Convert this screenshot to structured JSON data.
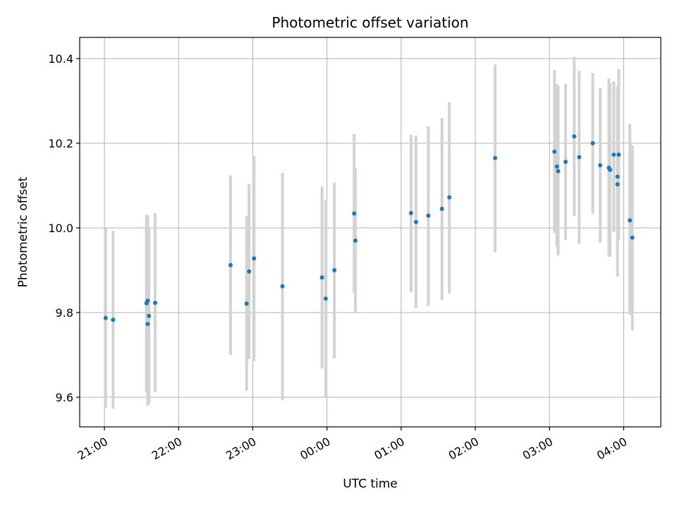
{
  "chart_data": {
    "type": "scatter",
    "title": "Photometric offset variation",
    "xlabel": "UTC time",
    "ylabel": "Photometric offset",
    "xlim": [
      "20:40",
      "04:30"
    ],
    "ylim": [
      9.53,
      10.45
    ],
    "x_ticks": [
      "21:00",
      "22:00",
      "23:00",
      "00:00",
      "01:00",
      "02:00",
      "03:00",
      "04:00"
    ],
    "y_ticks": [
      9.6,
      9.8,
      10.0,
      10.2,
      10.4
    ],
    "y_tick_labels": [
      "9.6",
      "9.8",
      "10.0",
      "10.2",
      "10.4"
    ],
    "grid": true,
    "colors": {
      "point": "#1f77b4",
      "errorbar": "#d3d3d3",
      "grid": "#b0b0b0"
    },
    "points": [
      {
        "t": "21:01",
        "y": 9.787,
        "yerr_low": 9.575,
        "yerr_high": 9.999
      },
      {
        "t": "21:07",
        "y": 9.783,
        "yerr_low": 9.573,
        "yerr_high": 9.993
      },
      {
        "t": "21:34",
        "y": 9.822,
        "yerr_low": 9.613,
        "yerr_high": 10.031
      },
      {
        "t": "21:35",
        "y": 9.828,
        "yerr_low": 9.62,
        "yerr_high": 10.03
      },
      {
        "t": "21:35",
        "y": 9.773,
        "yerr_low": 9.58,
        "yerr_high": 9.985
      },
      {
        "t": "21:36",
        "y": 9.792,
        "yerr_low": 9.585,
        "yerr_high": 9.998
      },
      {
        "t": "21:41",
        "y": 9.823,
        "yerr_low": 9.612,
        "yerr_high": 10.035
      },
      {
        "t": "22:42",
        "y": 9.912,
        "yerr_low": 9.7,
        "yerr_high": 10.124
      },
      {
        "t": "22:55",
        "y": 9.821,
        "yerr_low": 9.615,
        "yerr_high": 10.028
      },
      {
        "t": "22:57",
        "y": 9.897,
        "yerr_low": 9.69,
        "yerr_high": 10.104
      },
      {
        "t": "23:01",
        "y": 9.928,
        "yerr_low": 9.685,
        "yerr_high": 10.17
      },
      {
        "t": "23:24",
        "y": 9.862,
        "yerr_low": 9.593,
        "yerr_high": 10.13
      },
      {
        "t": "23:56",
        "y": 9.883,
        "yerr_low": 9.668,
        "yerr_high": 10.098
      },
      {
        "t": "23:59",
        "y": 9.833,
        "yerr_low": 9.6,
        "yerr_high": 10.066
      },
      {
        "t": "00:06",
        "y": 9.9,
        "yerr_low": 9.692,
        "yerr_high": 10.107
      },
      {
        "t": "00:22",
        "y": 10.034,
        "yerr_low": 9.846,
        "yerr_high": 10.222
      },
      {
        "t": "00:23",
        "y": 9.97,
        "yerr_low": 9.8,
        "yerr_high": 10.142
      },
      {
        "t": "01:08",
        "y": 10.035,
        "yerr_low": 9.848,
        "yerr_high": 10.22
      },
      {
        "t": "01:12",
        "y": 10.014,
        "yerr_low": 9.81,
        "yerr_high": 10.218
      },
      {
        "t": "01:22",
        "y": 10.029,
        "yerr_low": 9.815,
        "yerr_high": 10.24
      },
      {
        "t": "01:33",
        "y": 10.045,
        "yerr_low": 9.83,
        "yerr_high": 10.26
      },
      {
        "t": "01:39",
        "y": 10.072,
        "yerr_low": 9.845,
        "yerr_high": 10.297
      },
      {
        "t": "02:16",
        "y": 10.165,
        "yerr_low": 9.942,
        "yerr_high": 10.386
      },
      {
        "t": "03:04",
        "y": 10.18,
        "yerr_low": 9.988,
        "yerr_high": 10.373
      },
      {
        "t": "03:06",
        "y": 10.145,
        "yerr_low": 9.955,
        "yerr_high": 10.34
      },
      {
        "t": "03:07",
        "y": 10.134,
        "yerr_low": 9.935,
        "yerr_high": 10.336
      },
      {
        "t": "03:13",
        "y": 10.156,
        "yerr_low": 9.972,
        "yerr_high": 10.34
      },
      {
        "t": "03:20",
        "y": 10.216,
        "yerr_low": 10.028,
        "yerr_high": 10.404
      },
      {
        "t": "03:24",
        "y": 10.167,
        "yerr_low": 9.962,
        "yerr_high": 10.371
      },
      {
        "t": "03:35",
        "y": 10.2,
        "yerr_low": 10.033,
        "yerr_high": 10.366
      },
      {
        "t": "03:41",
        "y": 10.148,
        "yerr_low": 9.965,
        "yerr_high": 10.33
      },
      {
        "t": "03:48",
        "y": 10.142,
        "yerr_low": 9.932,
        "yerr_high": 10.353
      },
      {
        "t": "03:49",
        "y": 10.137,
        "yerr_low": 9.932,
        "yerr_high": 10.342
      },
      {
        "t": "03:52",
        "y": 10.173,
        "yerr_low": 9.99,
        "yerr_high": 10.346
      },
      {
        "t": "03:55",
        "y": 10.103,
        "yerr_low": 9.885,
        "yerr_high": 10.32
      },
      {
        "t": "03:55",
        "y": 10.121,
        "yerr_low": 9.91,
        "yerr_high": 10.334
      },
      {
        "t": "03:56",
        "y": 10.173,
        "yerr_low": 9.972,
        "yerr_high": 10.375
      },
      {
        "t": "04:05",
        "y": 10.018,
        "yerr_low": 9.795,
        "yerr_high": 10.246
      },
      {
        "t": "04:07",
        "y": 9.977,
        "yerr_low": 9.758,
        "yerr_high": 10.195
      }
    ]
  }
}
